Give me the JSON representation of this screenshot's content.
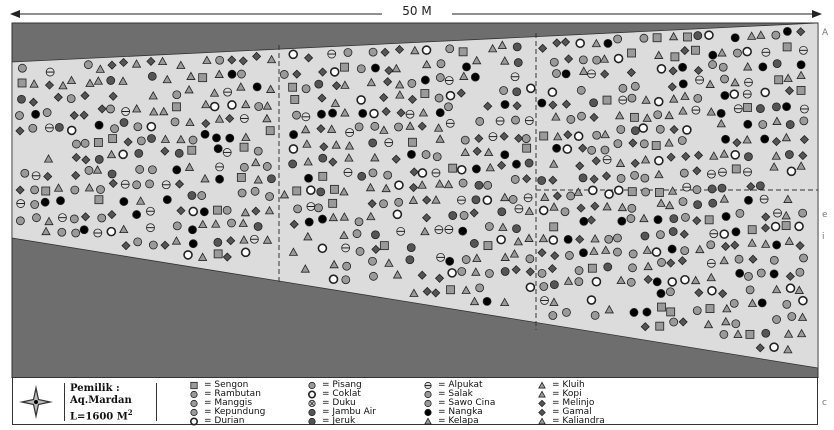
{
  "plan": {
    "dimension_label": "50 M",
    "background_color": "#ffffff",
    "field_color": "#dcdcdc",
    "border_region_color": "#6e6e6e",
    "symbol_fill": "#9a9a9a",
    "symbol_stroke": "#222222"
  },
  "owner": {
    "line1": "Pemilik :",
    "line2": "Aq.Mardan",
    "line3": "L=1600 M",
    "line3_sup": "2"
  },
  "legend": [
    {
      "icon": "square-icon",
      "label": "= Sengon"
    },
    {
      "icon": "circle-icon",
      "label": "= Rambutan"
    },
    {
      "icon": "circle-icon",
      "label": "= Manggis"
    },
    {
      "icon": "circle-icon",
      "label": "= Kepundung"
    },
    {
      "icon": "circle-outline-icon",
      "label": "= Durian"
    },
    {
      "icon": "circle-icon",
      "label": "= Pisang"
    },
    {
      "icon": "circle-outline-icon",
      "label": "= Coklat"
    },
    {
      "icon": "circle-cross-icon",
      "label": "= Duku"
    },
    {
      "icon": "circle-dark-icon",
      "label": "= Jambu Air"
    },
    {
      "icon": "circle-dark-icon",
      "label": "= Jeruk"
    },
    {
      "icon": "circle-bar-icon",
      "label": "= Alpukat"
    },
    {
      "icon": "circle-icon",
      "label": "= Salak"
    },
    {
      "icon": "circle-icon",
      "label": "= Sawo Cina"
    },
    {
      "icon": "circle-black-icon",
      "label": "= Nangka"
    },
    {
      "icon": "triangle-icon",
      "label": "= Kelapa"
    },
    {
      "icon": "triangle-icon",
      "label": "= Kluih"
    },
    {
      "icon": "triangle-icon",
      "label": "= Kopi"
    },
    {
      "icon": "diamond-icon",
      "label": "= Melinjo"
    },
    {
      "icon": "diamond-icon",
      "label": "= Gamal"
    },
    {
      "icon": "triangle-icon",
      "label": "= Kaliandra"
    }
  ],
  "right_marks": [
    "A",
    "e",
    "i",
    "c"
  ]
}
